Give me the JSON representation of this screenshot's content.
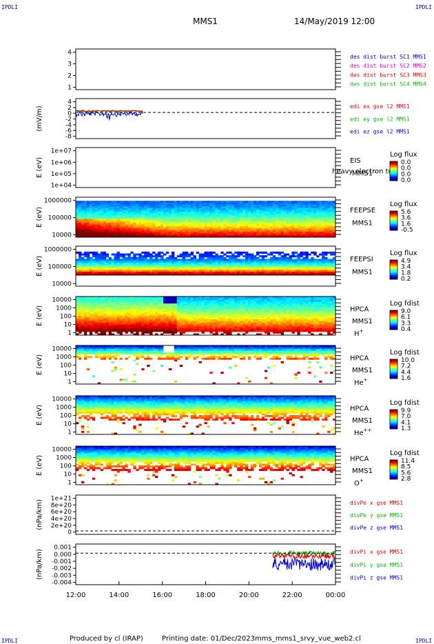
{
  "header": {
    "corner_label": "IPDLI",
    "title": "MMS1",
    "datetime": "14/May/2019 12:00"
  },
  "footer": {
    "produced_by": "Produced by cl (IRAP)",
    "printing_date": "Printing date: 01/Dec/2023",
    "filename": "mms_mms1_srvy_vue_web2.cl"
  },
  "time_axis": {
    "tick_labels": [
      "12:00",
      "14:00",
      "16:00",
      "18:00",
      "20:00",
      "22:00",
      "00:00"
    ],
    "start_hour": 12,
    "end_hour": 24
  },
  "colors": {
    "mms1": "#0000cc",
    "mms2": "#cc00cc",
    "mms3": "#dd0000",
    "mms4": "#00bb00",
    "ex": "#dd0000",
    "ey": "#00bb00",
    "ez": "#0000cc"
  },
  "chart_data": [
    {
      "id": "des",
      "type": "line",
      "ylabel": "",
      "yticks": [
        "4",
        "3",
        "2",
        "1"
      ],
      "ylim": [
        0.7,
        4.3
      ],
      "legend": [
        {
          "text": "des dist burst SC1 MMS1",
          "color": "#0000cc"
        },
        {
          "text": "des dist burst SC2 MMS2",
          "color": "#cc00cc"
        },
        {
          "text": "des dist burst SC3 MMS3",
          "color": "#dd0000"
        },
        {
          "text": "des dist burst SC4 MMS4",
          "color": "#00bb00"
        }
      ],
      "series": []
    },
    {
      "id": "edi",
      "type": "line",
      "ylabel": "(mV/m)",
      "yticks": [
        "4",
        "2",
        "0",
        "-2",
        "-4",
        "-6",
        "-8"
      ],
      "ylim": [
        -8.5,
        4.5
      ],
      "zero_line": true,
      "legend": [
        {
          "text": "edi ex gse l2 MMS1",
          "color": "#dd0000"
        },
        {
          "text": "edi ey gse l2 MMS1",
          "color": "#00bb00"
        },
        {
          "text": "edi ez gse l2 MMS1",
          "color": "#0000cc"
        }
      ],
      "data_range_hours": [
        12.0,
        15.1
      ]
    },
    {
      "id": "eis",
      "type": "heatmap",
      "ylabel": "E (eV)",
      "yticks": [
        "1e+07",
        "1e+06",
        "1e+05",
        "1e+04"
      ],
      "side_labels": [
        "EIS",
        "MMS1"
      ],
      "overlay_text": "heavy electron to",
      "colorbar": {
        "title": "Log flux",
        "labels": [
          "0.0",
          "0.0",
          "0.0",
          "0.0"
        ]
      },
      "empty": true
    },
    {
      "id": "feepse",
      "type": "heatmap",
      "ylabel": "E (eV)",
      "yticks": [
        "1000000",
        "100000",
        "10000"
      ],
      "side_labels": [
        "FEEPSE",
        "MMS1"
      ],
      "colorbar": {
        "title": "Log flux",
        "labels": [
          "5.6",
          "3.6",
          "1.6",
          "-0.5"
        ]
      },
      "profile": "feeps_e"
    },
    {
      "id": "feepsi",
      "type": "heatmap",
      "ylabel": "E (eV)",
      "yticks": [
        "1000000",
        "100000",
        "10000"
      ],
      "side_labels": [
        "FEEPSI",
        "MMS1"
      ],
      "colorbar": {
        "title": "Log flux",
        "labels": [
          "4.9",
          "3.4",
          "1.8",
          "0.2"
        ]
      },
      "profile": "feeps_i"
    },
    {
      "id": "hpca_h",
      "type": "heatmap",
      "ylabel": "E (eV)",
      "yticks": [
        "10000",
        "1000",
        "100",
        "10",
        "1"
      ],
      "side_labels": [
        "HPCA",
        "MMS1"
      ],
      "species": "H",
      "species_sup": "+",
      "colorbar": {
        "title": "Log fdist",
        "labels": [
          "9.0",
          "6.1",
          "3.3",
          "0.4"
        ]
      },
      "profile": "hpca_h"
    },
    {
      "id": "hpca_he",
      "type": "heatmap",
      "ylabel": "E (eV)",
      "yticks": [
        "10000",
        "1000",
        "100",
        "10",
        "1"
      ],
      "side_labels": [
        "HPCA",
        "MMS1"
      ],
      "species": "He",
      "species_sup": "+",
      "colorbar": {
        "title": "Log fdist",
        "labels": [
          "10.0",
          "7.2",
          "4.4",
          "1.6"
        ]
      },
      "profile": "hpca_he"
    },
    {
      "id": "hpca_hepp",
      "type": "heatmap",
      "ylabel": "E (eV)",
      "yticks": [
        "10000",
        "1000",
        "100",
        "10",
        "1"
      ],
      "side_labels": [
        "HPCA",
        "MMS1"
      ],
      "species": "He",
      "species_sup": "++",
      "colorbar": {
        "title": "Log fdist",
        "labels": [
          "9.9",
          "7.0",
          "4.1",
          "1.3"
        ]
      },
      "profile": "hpca_hepp"
    },
    {
      "id": "hpca_o",
      "type": "heatmap",
      "ylabel": "E (eV)",
      "yticks": [
        "10000",
        "1000",
        "100",
        "10",
        "1"
      ],
      "side_labels": [
        "HPCA",
        "MMS1"
      ],
      "species": "O",
      "species_sup": "+",
      "colorbar": {
        "title": "Log fdist",
        "labels": [
          "11.4",
          "8.5",
          "5.6",
          "2.8"
        ]
      },
      "profile": "hpca_o"
    },
    {
      "id": "divpe",
      "type": "line",
      "ylabel": "(nPa/km)",
      "yticks": [
        "1e+21",
        "8e+20",
        "6e+20",
        "4e+20",
        "2e+20",
        "0"
      ],
      "ylim": [
        -1e+20,
        1.05e+21
      ],
      "zero_line": true,
      "legend": [
        {
          "text": "divPe x gse MMS1",
          "color": "#dd0000"
        },
        {
          "text": "divPe y gse MMS1",
          "color": "#00bb00"
        },
        {
          "text": "divPe z gse MMS1",
          "color": "#0000cc"
        }
      ],
      "series": []
    },
    {
      "id": "divpi",
      "type": "line",
      "ylabel": "(nPa/km)",
      "yticks": [
        "0.001",
        "0.000",
        "-0.001",
        "-0.002",
        "-0.003",
        "-0.004"
      ],
      "ylim": [
        -0.0045,
        0.0013
      ],
      "zero_line": true,
      "legend": [
        {
          "text": "divPi x gse MMS1",
          "color": "#dd0000"
        },
        {
          "text": "divPi y gse MMS1",
          "color": "#00bb00"
        },
        {
          "text": "divPi z gse MMS1",
          "color": "#0000cc"
        }
      ],
      "data_range_hours": [
        21.1,
        24.0
      ]
    }
  ]
}
